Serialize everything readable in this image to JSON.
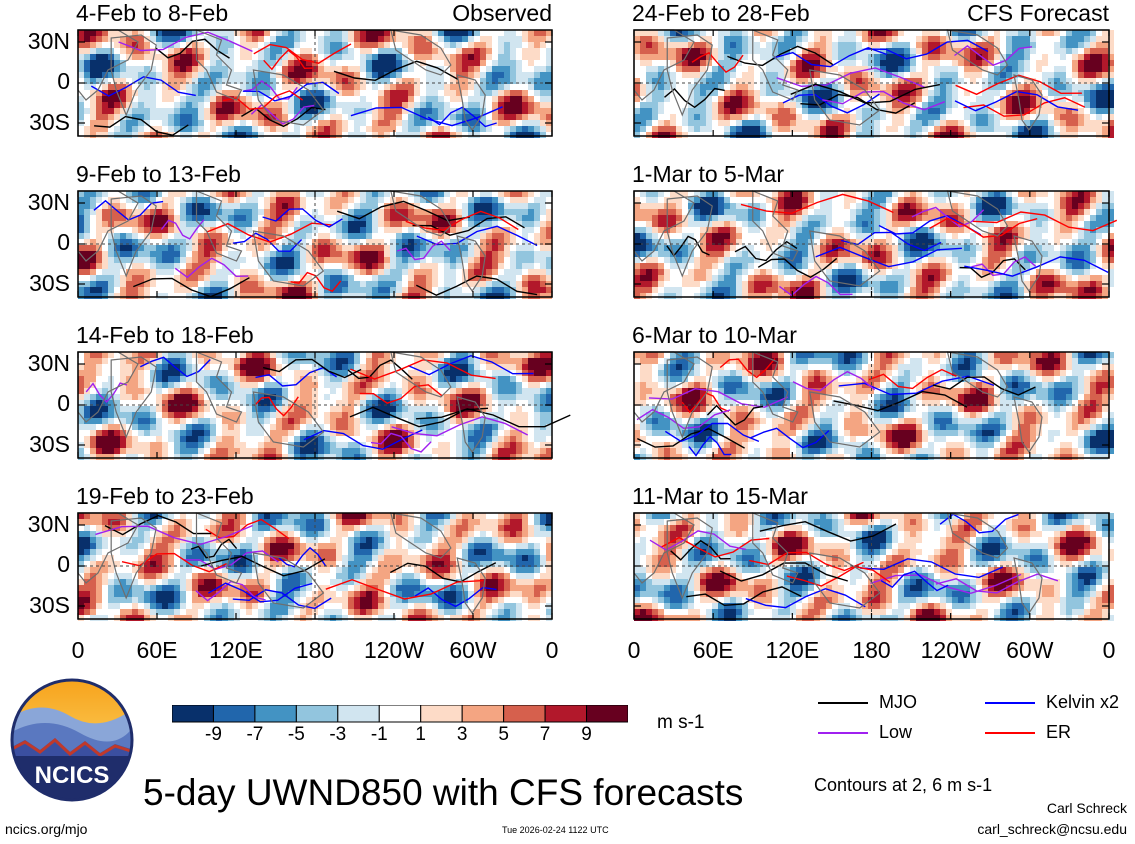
{
  "chart_data": {
    "type": "heatmap",
    "title": "5-day UWND850 with CFS forecasts",
    "variable": "UWND850",
    "units": "m s-1",
    "x_ticks": [
      "0",
      "60E",
      "120E",
      "180",
      "120W",
      "60W",
      "0"
    ],
    "y_ticks": [
      "30N",
      "0",
      "30S"
    ],
    "colorbar": {
      "ticks": [
        "-9",
        "-7",
        "-5",
        "-3",
        "-1",
        "1",
        "3",
        "5",
        "7",
        "9"
      ],
      "colors": [
        "#08306b",
        "#2166ac",
        "#4393c3",
        "#92c5de",
        "#d1e5f0",
        "#ffffff",
        "#fddbc7",
        "#f4a582",
        "#d6604d",
        "#b2182b",
        "#67001f"
      ]
    },
    "observed_tag": "Observed",
    "forecast_tag": "CFS Forecast",
    "panels": [
      {
        "period": "4-Feb to 8-Feb",
        "source": "observed"
      },
      {
        "period": "9-Feb to 13-Feb",
        "source": "observed"
      },
      {
        "period": "14-Feb to 18-Feb",
        "source": "observed"
      },
      {
        "period": "19-Feb to 23-Feb",
        "source": "observed"
      },
      {
        "period": "24-Feb to 28-Feb",
        "source": "forecast"
      },
      {
        "period": "1-Mar to 5-Mar",
        "source": "forecast"
      },
      {
        "period": "6-Mar to 10-Mar",
        "source": "forecast"
      },
      {
        "period": "11-Mar to 15-Mar",
        "source": "forecast"
      }
    ],
    "legend": [
      {
        "label": "MJO",
        "color": "#000000"
      },
      {
        "label": "Kelvin x2",
        "color": "#0000ff"
      },
      {
        "label": "Low",
        "color": "#a020f0"
      },
      {
        "label": "ER",
        "color": "#ff0000"
      }
    ],
    "contour_note": "Contours at 2, 6 m s-1"
  },
  "footer": {
    "org": "NCICS",
    "url": "ncics.org/mjo",
    "timestamp": "Tue 2026-02-24 1122 UTC",
    "author": "Carl Schreck",
    "email": "carl_schreck@ncsu.edu"
  }
}
